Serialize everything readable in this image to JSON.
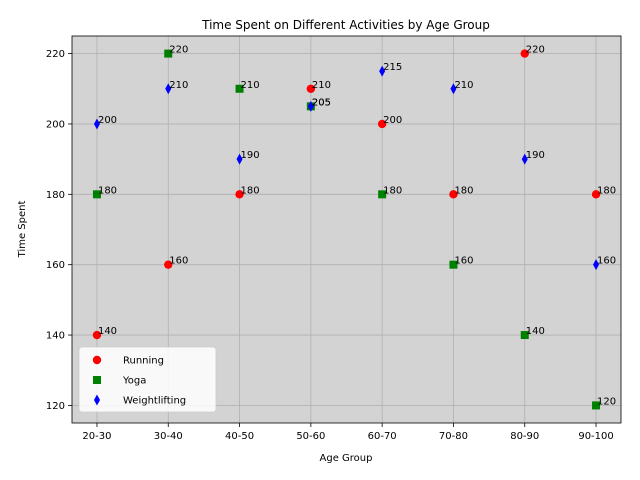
{
  "chart_data": {
    "type": "scatter",
    "title": "Time Spent on Different Activities by Age Group",
    "xlabel": "Age Group",
    "ylabel": "Time Spent",
    "categories": [
      "20-30",
      "30-40",
      "40-50",
      "50-60",
      "60-70",
      "70-80",
      "80-90",
      "90-100"
    ],
    "yticks": [
      120,
      140,
      160,
      180,
      200,
      220
    ],
    "ylim": [
      115,
      225
    ],
    "grid": true,
    "legend_position": "lower-left",
    "background": "#d3d3d3",
    "series": [
      {
        "name": "Running",
        "marker": "circle",
        "color": "#ff0000",
        "values": [
          140,
          160,
          180,
          210,
          200,
          180,
          220,
          180
        ]
      },
      {
        "name": "Yoga",
        "marker": "square",
        "color": "#008000",
        "values": [
          180,
          220,
          210,
          205,
          180,
          160,
          140,
          120
        ]
      },
      {
        "name": "Weightlifting",
        "marker": "thin-diamond",
        "color": "#0000ff",
        "values": [
          200,
          210,
          190,
          205,
          215,
          210,
          190,
          160
        ]
      }
    ]
  }
}
